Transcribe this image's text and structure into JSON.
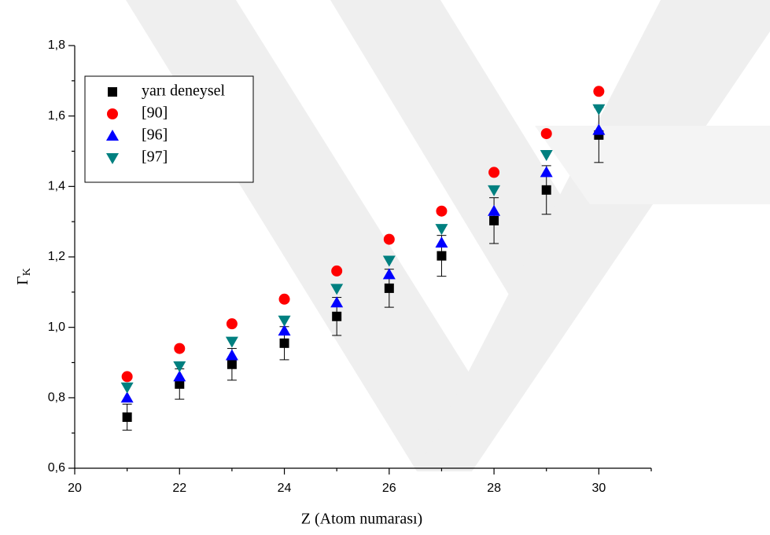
{
  "chart_data": {
    "type": "scatter",
    "x_label": "Z (Atom numarası)",
    "y_label": {
      "text": "Γ",
      "sub": "K"
    },
    "xlim": [
      20,
      31
    ],
    "ylim": [
      0.6,
      1.8
    ],
    "xticks": [
      20,
      22,
      24,
      26,
      28,
      30
    ],
    "xminor": [
      21,
      23,
      25,
      27,
      29,
      31
    ],
    "yticks": [
      {
        "value": 0.6,
        "label": "0,6"
      },
      {
        "value": 0.8,
        "label": "0,8"
      },
      {
        "value": 1.0,
        "label": "1,0"
      },
      {
        "value": 1.2,
        "label": "1,2"
      },
      {
        "value": 1.4,
        "label": "1,4"
      },
      {
        "value": 1.6,
        "label": "1,6"
      },
      {
        "value": 1.8,
        "label": "1,8"
      }
    ],
    "yminor": [
      0.7,
      0.9,
      1.1,
      1.3,
      1.5,
      1.7
    ],
    "legend": "upper left",
    "x": [
      21,
      22,
      23,
      24,
      25,
      26,
      27,
      28,
      29,
      30
    ],
    "series": [
      {
        "name": "yarı deneysel",
        "color": "#000000",
        "marker": "square",
        "values": [
          0.745,
          0.839,
          0.895,
          0.955,
          1.031,
          1.111,
          1.203,
          1.303,
          1.39,
          1.546
        ],
        "errors": [
          0.037,
          0.043,
          0.045,
          0.047,
          0.054,
          0.054,
          0.058,
          0.065,
          0.069,
          0.078
        ]
      },
      {
        "name": "[90]",
        "color": "#ff0000",
        "marker": "circle",
        "values": [
          0.86,
          0.94,
          1.01,
          1.08,
          1.16,
          1.25,
          1.33,
          1.44,
          1.55,
          1.67
        ]
      },
      {
        "name": "[96]",
        "color": "#0000ff",
        "marker": "triangle-up",
        "values": [
          0.8,
          0.86,
          0.92,
          0.99,
          1.07,
          1.15,
          1.24,
          1.33,
          1.44,
          1.56
        ]
      },
      {
        "name": "[97]",
        "color": "#008080",
        "marker": "triangle-down",
        "values": [
          0.83,
          0.89,
          0.96,
          1.02,
          1.11,
          1.19,
          1.28,
          1.39,
          1.49,
          1.62
        ]
      }
    ]
  }
}
